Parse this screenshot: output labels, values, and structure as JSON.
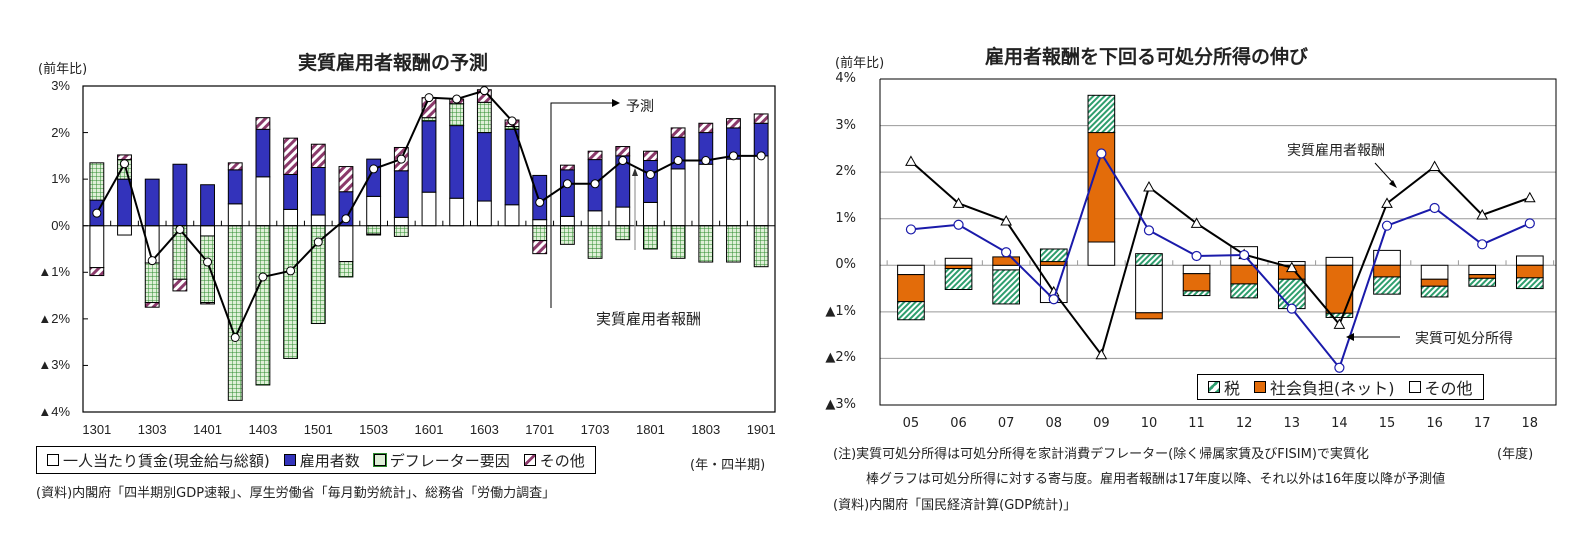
{
  "left": {
    "chart_data": {
      "type": "bar",
      "stacked": true,
      "title": "実質雇用者報酬の予測",
      "ylabel": "(前年比)",
      "xlabel": "(年・四半期)",
      "ylim": [
        -4,
        3
      ],
      "yticks": [
        "3%",
        "2%",
        "1%",
        "0%",
        "▲1%",
        "▲2%",
        "▲3%",
        "▲4%"
      ],
      "ytick_values": [
        3,
        2,
        1,
        0,
        -1,
        -2,
        -3,
        -4
      ],
      "categories": [
        "1301",
        "1302",
        "1303",
        "1304",
        "1401",
        "1402",
        "1403",
        "1404",
        "1501",
        "1502",
        "1503",
        "1504",
        "1601",
        "1602",
        "1603",
        "1604",
        "1701",
        "1702",
        "1703",
        "1704",
        "1801",
        "1802",
        "1803",
        "1804",
        "1901"
      ],
      "xtick_labels": [
        "1301",
        "1303",
        "1401",
        "1403",
        "1501",
        "1503",
        "1601",
        "1603",
        "1701",
        "1703",
        "1801",
        "1803",
        "1901"
      ],
      "series": [
        {
          "name": "一人当たり賃金(現金給与総額)",
          "color": "#ffffff",
          "type": "bar",
          "values": [
            -0.9,
            -0.2,
            -0.8,
            0.0,
            -0.22,
            0.47,
            1.05,
            0.35,
            0.23,
            -0.77,
            0.63,
            0.18,
            0.72,
            0.59,
            0.53,
            0.45,
            0.13,
            0.2,
            0.32,
            0.4,
            0.5,
            1.22,
            1.32,
            1.43,
            1.5
          ]
        },
        {
          "name": "雇用者数",
          "color": "#3333bb",
          "type": "bar",
          "values": [
            0.55,
            1.0,
            1.0,
            1.32,
            0.88,
            0.73,
            1.02,
            0.75,
            1.02,
            0.73,
            0.8,
            1.0,
            1.53,
            1.56,
            1.47,
            1.62,
            0.95,
            1.0,
            1.1,
            1.1,
            0.9,
            0.68,
            0.68,
            0.67,
            0.7
          ]
        },
        {
          "name": "デフレーター要因",
          "color": "#2e8b2e",
          "type": "bar",
          "values": [
            0.8,
            0.42,
            -0.85,
            -1.15,
            -1.43,
            -3.75,
            -3.42,
            -2.85,
            -2.1,
            -0.33,
            -0.18,
            -0.23,
            0.07,
            0.47,
            0.65,
            0.06,
            -0.32,
            -0.4,
            -0.7,
            -0.3,
            -0.5,
            -0.7,
            -0.78,
            -0.78,
            -0.88
          ]
        },
        {
          "name": "その他",
          "color": "#8b3a6b",
          "type": "bar",
          "values": [
            -0.17,
            0.1,
            -0.1,
            -0.25,
            -0.03,
            0.15,
            0.25,
            0.78,
            0.5,
            0.54,
            -0.02,
            0.5,
            0.43,
            0.1,
            0.27,
            0.14,
            -0.28,
            0.1,
            0.18,
            0.2,
            0.2,
            0.2,
            0.2,
            0.2,
            0.2
          ]
        },
        {
          "name": "実質雇用者報酬",
          "color": "#000000",
          "type": "line",
          "values": [
            0.27,
            1.33,
            -0.75,
            -0.08,
            -0.78,
            -2.4,
            -1.1,
            -0.97,
            -0.35,
            0.15,
            1.22,
            1.43,
            2.75,
            2.72,
            2.9,
            2.25,
            0.5,
            0.9,
            0.9,
            1.4,
            1.1,
            1.4,
            1.4,
            1.5,
            1.5
          ]
        }
      ],
      "forecast_start": "1702",
      "annotations": [
        "予測",
        "実質雇用者報酬"
      ],
      "legend": "bottom",
      "grid": false
    },
    "legend_items": [
      {
        "label": "一人当たり賃金(現金給与総額)",
        "swatch": "white"
      },
      {
        "label": "雇用者数",
        "swatch": "blue"
      },
      {
        "label": "デフレーター要因",
        "swatch": "green-grid"
      },
      {
        "label": "その他",
        "swatch": "hatch"
      }
    ],
    "source": "(資料)内閣府「四半期別GDP速報」、厚生労働省「毎月勤労統計」、総務省「労働力調査」"
  },
  "right": {
    "chart_data": {
      "type": "bar",
      "stacked": true,
      "title": "雇用者報酬を下回る可処分所得の伸び",
      "ylabel": "(前年比)",
      "xlabel": "(年度)",
      "ylim": [
        -3,
        4
      ],
      "yticks": [
        "4%",
        "3%",
        "2%",
        "1%",
        "0%",
        "▲1%",
        "▲2%",
        "▲3%"
      ],
      "ytick_values": [
        4,
        3,
        2,
        1,
        0,
        -1,
        -2,
        -3
      ],
      "categories": [
        "05",
        "06",
        "07",
        "08",
        "09",
        "10",
        "11",
        "12",
        "13",
        "14",
        "15",
        "16",
        "17",
        "18"
      ],
      "series": [
        {
          "name": "その他",
          "color": "#ffffff",
          "type": "bar",
          "values": [
            -0.2,
            0.15,
            -0.1,
            -0.8,
            0.5,
            -1.02,
            -0.18,
            0.4,
            0.08,
            0.17,
            0.32,
            -0.3,
            -0.2,
            0.2
          ]
        },
        {
          "name": "社会負担(ネット)",
          "color": "#e36c0a",
          "type": "bar",
          "values": [
            -0.58,
            -0.07,
            0.18,
            0.08,
            2.35,
            -0.13,
            -0.37,
            -0.4,
            -0.3,
            -1.03,
            -0.25,
            -0.15,
            -0.08,
            -0.27
          ]
        },
        {
          "name": "税",
          "color": "#2e9e6e",
          "type": "bar",
          "values": [
            -0.39,
            -0.45,
            -0.73,
            0.27,
            0.8,
            0.25,
            -0.1,
            -0.3,
            -0.63,
            -0.09,
            -0.37,
            -0.23,
            -0.17,
            -0.23
          ]
        },
        {
          "name": "実質雇用者報酬",
          "color": "#000000",
          "type": "line",
          "marker": "triangle",
          "values": [
            2.23,
            1.33,
            0.95,
            -0.57,
            -1.92,
            1.68,
            0.9,
            0.23,
            -0.05,
            -1.27,
            1.33,
            2.12,
            1.08,
            1.45
          ]
        },
        {
          "name": "実質可処分所得",
          "color": "#1a1aaa",
          "type": "line",
          "marker": "circle",
          "values": [
            0.77,
            0.87,
            0.28,
            -0.73,
            2.4,
            0.75,
            0.2,
            0.22,
            -0.93,
            -2.2,
            0.85,
            1.23,
            0.45,
            0.9
          ]
        }
      ],
      "annotations": [
        "実質雇用者報酬",
        "実質可処分所得"
      ],
      "legend": "bottom-right inside",
      "grid": true
    },
    "legend_items": [
      {
        "label": "税",
        "swatch": "green-hatch"
      },
      {
        "label": "社会負担(ネット)",
        "swatch": "orange"
      },
      {
        "label": "その他",
        "swatch": "white"
      }
    ],
    "notes": [
      "(注)実質可処分所得は可処分所得を家計消費デフレーター(除く帰属家賃及びFISIM)で実質化",
      "棒グラフは可処分所得に対する寄与度。雇用者報酬は17年度以降、それ以外は16年度以降が予測値",
      "(資料)内閣府「国民経済計算(GDP統計)」"
    ]
  }
}
